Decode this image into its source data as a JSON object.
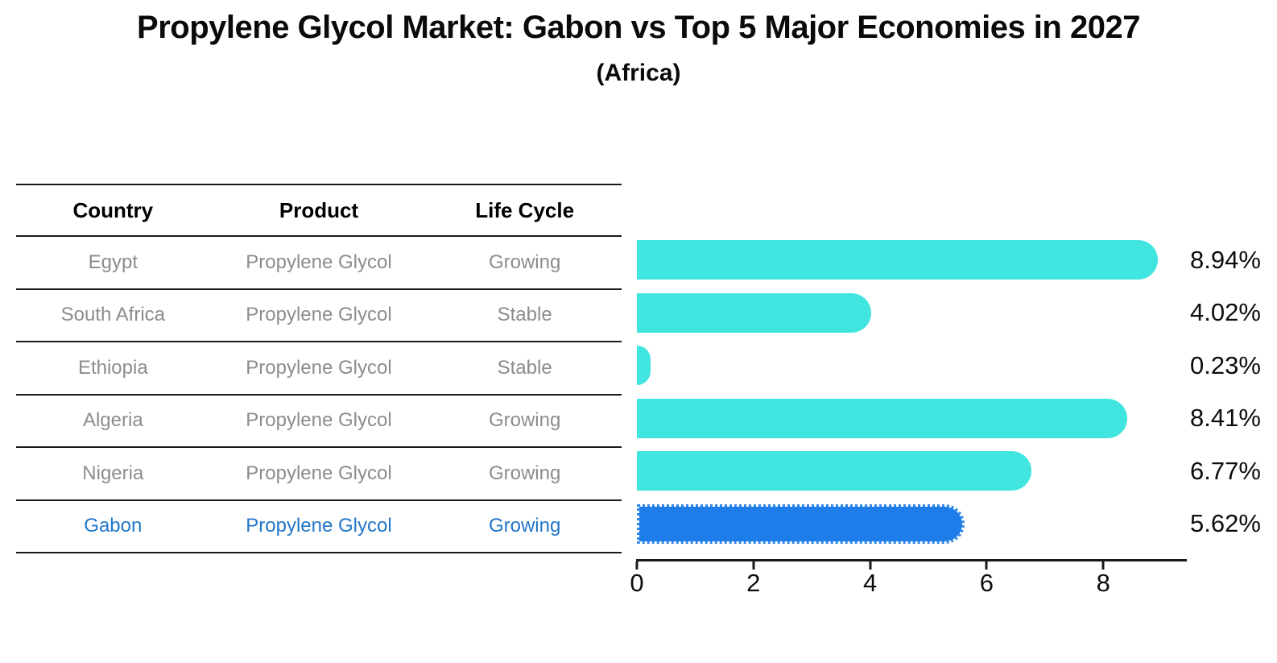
{
  "title": "Propylene Glycol Market: Gabon vs Top 5 Major Economies in 2027",
  "subtitle": "(Africa)",
  "table": {
    "columns": [
      "Country",
      "Product",
      "Life Cycle"
    ],
    "rows": [
      {
        "country": "Egypt",
        "product": "Propylene Glycol",
        "life_cycle": "Growing",
        "highlight": false
      },
      {
        "country": "South Africa",
        "product": "Propylene Glycol",
        "life_cycle": "Stable",
        "highlight": false
      },
      {
        "country": "Ethiopia",
        "product": "Propylene Glycol",
        "life_cycle": "Stable",
        "highlight": false
      },
      {
        "country": "Algeria",
        "product": "Propylene Glycol",
        "life_cycle": "Growing",
        "highlight": false
      },
      {
        "country": "Nigeria",
        "product": "Propylene Glycol",
        "life_cycle": "Growing",
        "highlight": false
      },
      {
        "country": "Gabon",
        "product": "Propylene Glycol",
        "life_cycle": "Growing",
        "highlight": true
      }
    ]
  },
  "chart_data": {
    "type": "bar",
    "orientation": "horizontal",
    "title": "Propylene Glycol Market: Gabon vs Top 5 Major Economies in 2027",
    "subtitle": "(Africa)",
    "categories": [
      "Egypt",
      "South Africa",
      "Ethiopia",
      "Algeria",
      "Nigeria",
      "Gabon"
    ],
    "values": [
      8.94,
      4.02,
      0.23,
      8.41,
      6.77,
      5.62
    ],
    "value_labels": [
      "8.94%",
      "4.02%",
      "0.23%",
      "8.41%",
      "6.77%",
      "5.62%"
    ],
    "highlight_category": "Gabon",
    "xticks": [
      0,
      2,
      4,
      6,
      8
    ],
    "xlim": [
      0,
      9.43
    ],
    "grid": false,
    "legend": "none",
    "colors": {
      "bar": "#41e5e0",
      "highlight_bar": "#1e7de8",
      "highlight_border": "#2f87ea",
      "highlight_text": "#2277c8",
      "axis": "#1a1a1a",
      "table_text": "#8c8c8c",
      "label_text": "#0d0d0d"
    }
  }
}
